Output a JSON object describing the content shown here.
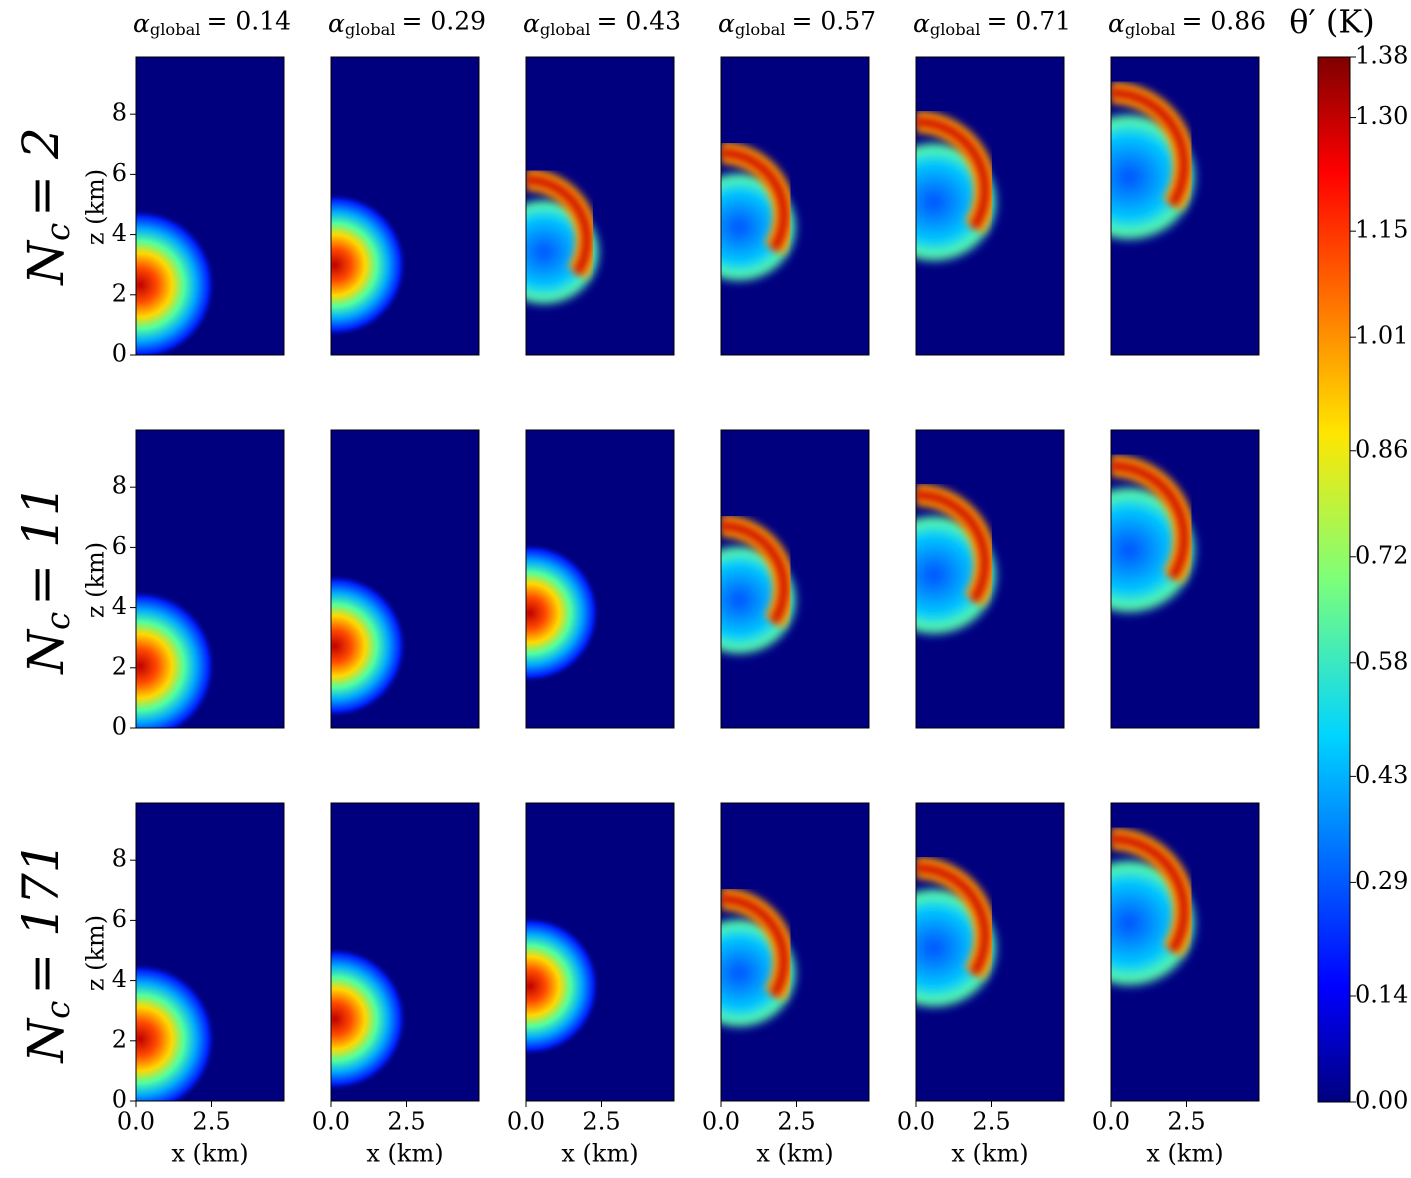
{
  "chart_data": {
    "type": "heatmap-grid",
    "columns": [
      {
        "prefix": "α",
        "sub": "global",
        "text": "= 0.14"
      },
      {
        "prefix": "α",
        "sub": "global",
        "text": "= 0.29"
      },
      {
        "prefix": "α",
        "sub": "global",
        "text": "= 0.43"
      },
      {
        "prefix": "α",
        "sub": "global",
        "text": "= 0.57"
      },
      {
        "prefix": "α",
        "sub": "global",
        "text": "= 0.71"
      },
      {
        "prefix": "α",
        "sub": "global",
        "text": "= 0.86"
      }
    ],
    "rows": [
      {
        "prefix": "N",
        "sub": "c",
        "text": "= 2"
      },
      {
        "prefix": "N",
        "sub": "c",
        "text": "= 11"
      },
      {
        "prefix": "N",
        "sub": "c",
        "text": "= 171"
      }
    ],
    "xlabel": "x (km)",
    "ylabel": "z (km)",
    "xlim": [
      0,
      4.9
    ],
    "xticks": [
      {
        "value": 0,
        "label": "0.0"
      },
      2.5
    ],
    "ylim": [
      0,
      9.9
    ],
    "yticks": [
      0,
      2,
      4,
      6,
      8
    ],
    "colorbar": {
      "label": "θ′ (K)",
      "colormap": "jet",
      "lim": [
        0,
        1.38
      ],
      "ticks": [
        {
          "value": 0,
          "label": "0.00"
        },
        0.14,
        0.29,
        0.43,
        0.58,
        0.72,
        0.86,
        1.01,
        1.15,
        {
          "value": 1.3,
          "label": "1.30"
        },
        1.38
      ]
    }
  }
}
